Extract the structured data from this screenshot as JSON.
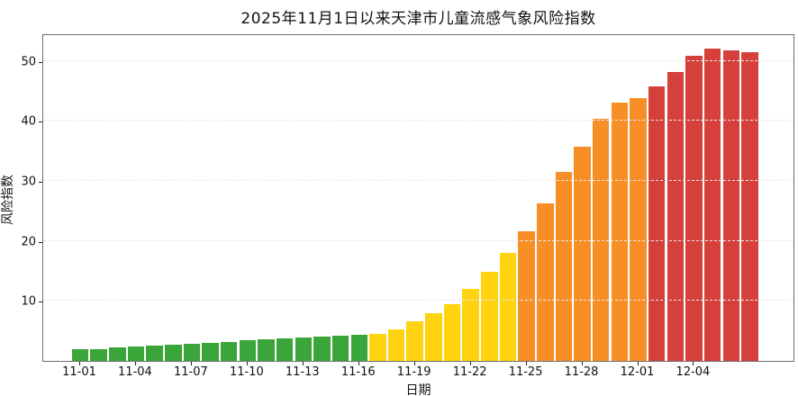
{
  "title": "2025年11月1日以来天津市儿童流感气象风险指数",
  "chart_data": {
    "type": "bar",
    "title": "2025年11月1日以来天津市儿童流感气象风险指数",
    "xlabel": "日期",
    "ylabel": "风险指数",
    "ylim": [
      0,
      54.6
    ],
    "yticks": [
      10,
      20,
      30,
      40,
      50
    ],
    "xtick_labels": [
      "11-01",
      "11-04",
      "11-07",
      "11-10",
      "11-13",
      "11-16",
      "11-19",
      "11-22",
      "11-25",
      "11-28",
      "12-01",
      "12-04"
    ],
    "xtick_every_n_bars": 3,
    "grid": "horizontal-dashed",
    "legend_position": "none",
    "palette": {
      "low": "#3AA63A",
      "moderate": "#FFD30F",
      "high": "#F78E26",
      "very_high": "#D6403A"
    },
    "bars": [
      {
        "date": "11-01",
        "value": 2.0,
        "level": "low"
      },
      {
        "date": "11-02",
        "value": 2.0,
        "level": "low"
      },
      {
        "date": "11-03",
        "value": 2.3,
        "level": "low"
      },
      {
        "date": "11-04",
        "value": 2.4,
        "level": "low"
      },
      {
        "date": "11-05",
        "value": 2.6,
        "level": "low"
      },
      {
        "date": "11-06",
        "value": 2.7,
        "level": "low"
      },
      {
        "date": "11-07",
        "value": 2.9,
        "level": "low"
      },
      {
        "date": "11-08",
        "value": 3.0,
        "level": "low"
      },
      {
        "date": "11-09",
        "value": 3.2,
        "level": "low"
      },
      {
        "date": "11-10",
        "value": 3.4,
        "level": "low"
      },
      {
        "date": "11-11",
        "value": 3.6,
        "level": "low"
      },
      {
        "date": "11-12",
        "value": 3.8,
        "level": "low"
      },
      {
        "date": "11-13",
        "value": 3.9,
        "level": "low"
      },
      {
        "date": "11-14",
        "value": 4.1,
        "level": "low"
      },
      {
        "date": "11-15",
        "value": 4.2,
        "level": "low"
      },
      {
        "date": "11-16",
        "value": 4.3,
        "level": "low"
      },
      {
        "date": "11-17",
        "value": 4.5,
        "level": "moderate"
      },
      {
        "date": "11-18",
        "value": 5.2,
        "level": "moderate"
      },
      {
        "date": "11-19",
        "value": 6.6,
        "level": "moderate"
      },
      {
        "date": "11-20",
        "value": 8.0,
        "level": "moderate"
      },
      {
        "date": "11-21",
        "value": 9.5,
        "level": "moderate"
      },
      {
        "date": "11-22",
        "value": 12.0,
        "level": "moderate"
      },
      {
        "date": "11-23",
        "value": 14.8,
        "level": "moderate"
      },
      {
        "date": "11-24",
        "value": 18.0,
        "level": "moderate"
      },
      {
        "date": "11-25",
        "value": 21.6,
        "level": "high"
      },
      {
        "date": "11-26",
        "value": 26.3,
        "level": "high"
      },
      {
        "date": "11-27",
        "value": 31.5,
        "level": "high"
      },
      {
        "date": "11-28",
        "value": 35.7,
        "level": "high"
      },
      {
        "date": "11-29",
        "value": 40.4,
        "level": "high"
      },
      {
        "date": "11-30",
        "value": 43.0,
        "level": "high"
      },
      {
        "date": "12-01",
        "value": 43.8,
        "level": "high"
      },
      {
        "date": "12-02",
        "value": 45.7,
        "level": "very_high"
      },
      {
        "date": "12-03",
        "value": 48.1,
        "level": "very_high"
      },
      {
        "date": "12-04",
        "value": 50.8,
        "level": "very_high"
      },
      {
        "date": "12-05",
        "value": 52.1,
        "level": "very_high"
      },
      {
        "date": "12-06",
        "value": 51.8,
        "level": "very_high"
      },
      {
        "date": "12-07",
        "value": 51.4,
        "level": "very_high"
      }
    ]
  }
}
